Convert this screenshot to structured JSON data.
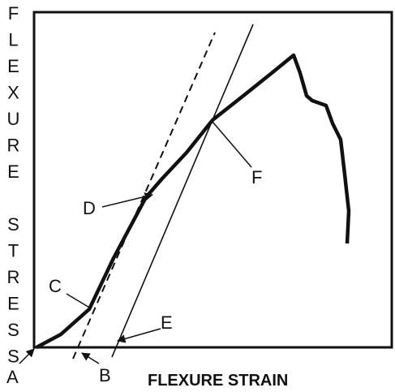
{
  "axes": {
    "y_label": "FLEXURE STRESS",
    "x_label": "FLEXURE STRAIN"
  },
  "labels": {
    "a": "A",
    "b": "B",
    "c": "C",
    "d": "D",
    "e": "E",
    "f": "F"
  }
}
